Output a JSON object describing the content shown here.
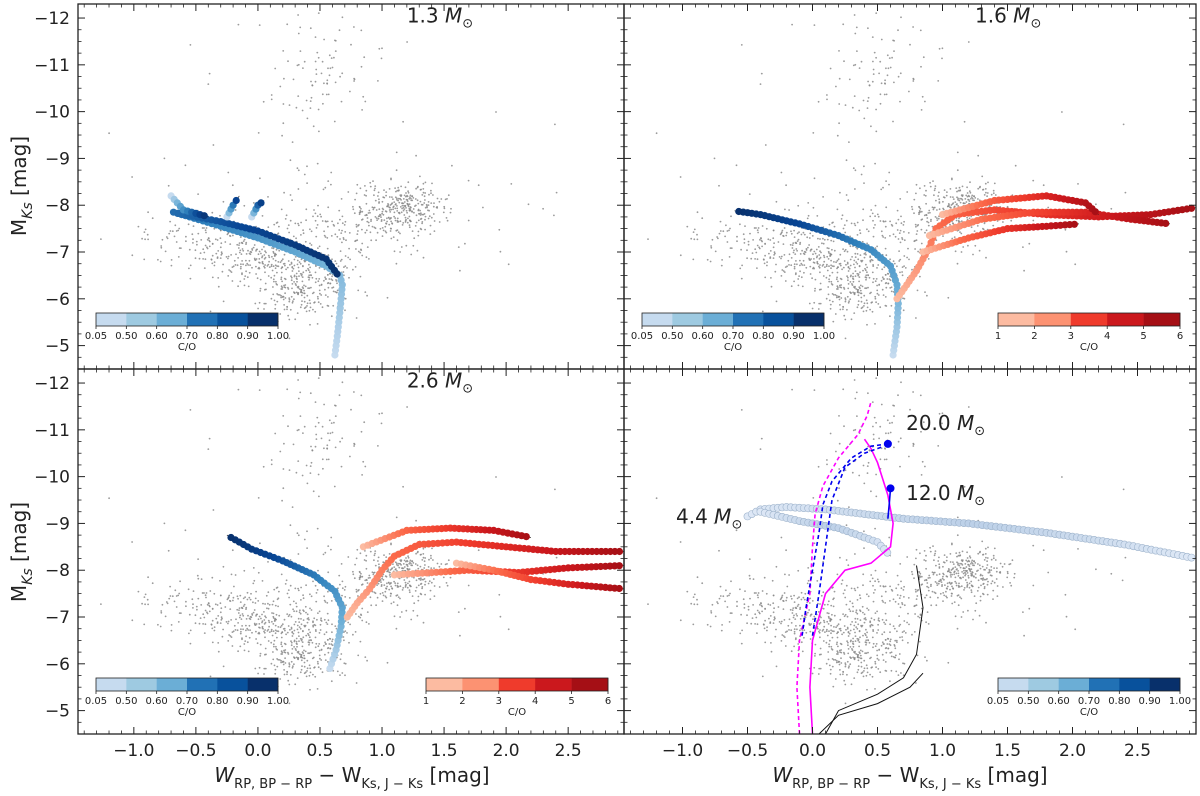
{
  "figure": {
    "xlabel_main": "W",
    "xlabel_sub1": "RP, BP − RP",
    "xlabel_mid": " − W",
    "xlabel_sub2": "Ks, J − Ks",
    "xlabel_unit": "  [mag]",
    "ylabel_main": "M",
    "ylabel_sub": "Ks",
    "ylabel_unit": " [mag]"
  },
  "chart_data": [
    {
      "type": "scatter",
      "panel": "top-left",
      "xlim": [
        -1.45,
        2.95
      ],
      "ylim": [
        -12.3,
        -4.5
      ],
      "y_inverted": true,
      "xticks": [
        -1.0,
        -0.5,
        0.0,
        0.5,
        1.0,
        1.5,
        2.0,
        2.5
      ],
      "yticks": [
        -12,
        -11,
        -10,
        -9,
        -8,
        -7,
        -6,
        -5
      ],
      "annotations": [
        {
          "text": "1.3",
          "x": 1.2,
          "y": -11.9
        }
      ],
      "colorbars": [
        {
          "cmap": "Blues",
          "ticks": [
            "0.05",
            "0.50",
            "0.60",
            "0.70",
            "0.80",
            "0.90",
            "1.00"
          ],
          "label": "C/O",
          "placement": "bottom-left"
        }
      ],
      "series": [
        {
          "kind": "track",
          "colormap": "blues",
          "points": [
            [
              0.62,
              -4.8
            ],
            [
              0.64,
              -5.2
            ],
            [
              0.66,
              -5.7
            ],
            [
              0.68,
              -6.3
            ],
            [
              0.66,
              -6.5
            ],
            [
              0.55,
              -6.7
            ],
            [
              0.3,
              -7.0
            ],
            [
              0.0,
              -7.3
            ],
            [
              -0.3,
              -7.55
            ],
            [
              -0.55,
              -7.75
            ],
            [
              -0.68,
              -7.85
            ],
            [
              -0.6,
              -7.8
            ],
            [
              -0.3,
              -7.65
            ],
            [
              0.0,
              -7.45
            ],
            [
              0.3,
              -7.15
            ],
            [
              0.55,
              -6.85
            ],
            [
              0.66,
              -6.45
            ]
          ]
        },
        {
          "kind": "track",
          "colormap": "blues",
          "points": [
            [
              -0.7,
              -8.2
            ],
            [
              -0.6,
              -7.9
            ],
            [
              -0.4,
              -7.75
            ]
          ]
        },
        {
          "kind": "track",
          "colormap": "blues",
          "points": [
            [
              -0.25,
              -7.75
            ],
            [
              -0.2,
              -8.0
            ],
            [
              -0.15,
              -8.2
            ]
          ]
        },
        {
          "kind": "track",
          "colormap": "blues",
          "points": [
            [
              -0.05,
              -7.75
            ],
            [
              0.0,
              -8.0
            ],
            [
              0.05,
              -8.1
            ]
          ]
        }
      ]
    },
    {
      "type": "scatter",
      "panel": "top-right",
      "xlim": [
        -1.45,
        2.95
      ],
      "ylim": [
        -12.3,
        -4.5
      ],
      "y_inverted": true,
      "xticks": [
        -1.0,
        -0.5,
        0.0,
        0.5,
        1.0,
        1.5,
        2.0,
        2.5
      ],
      "yticks": [
        -12,
        -11,
        -10,
        -9,
        -8,
        -7,
        -6,
        -5
      ],
      "annotations": [
        {
          "text": "1.6",
          "x": 1.25,
          "y": -11.9
        }
      ],
      "colorbars": [
        {
          "cmap": "Blues",
          "ticks": [
            "0.05",
            "0.50",
            "0.60",
            "0.70",
            "0.80",
            "0.90",
            "1.00"
          ],
          "label": "C/O",
          "placement": "bottom-left"
        },
        {
          "cmap": "Reds",
          "ticks": [
            "1",
            "2",
            "3",
            "4",
            "5",
            "6"
          ],
          "label": "C/O",
          "placement": "bottom-right"
        }
      ],
      "series": [
        {
          "kind": "track",
          "colormap": "blues",
          "points": [
            [
              0.62,
              -4.8
            ],
            [
              0.65,
              -5.4
            ],
            [
              0.66,
              -5.9
            ],
            [
              0.65,
              -6.3
            ],
            [
              0.6,
              -6.7
            ],
            [
              0.45,
              -7.05
            ],
            [
              0.2,
              -7.35
            ],
            [
              -0.1,
              -7.6
            ],
            [
              -0.4,
              -7.8
            ],
            [
              -0.6,
              -7.88
            ]
          ]
        },
        {
          "kind": "track",
          "colormap": "reds",
          "points": [
            [
              0.65,
              -6.0
            ],
            [
              0.8,
              -6.6
            ],
            [
              0.9,
              -7.1
            ],
            [
              0.95,
              -7.5
            ],
            [
              1.1,
              -7.8
            ],
            [
              1.4,
              -7.9
            ],
            [
              1.8,
              -7.8
            ],
            [
              2.2,
              -7.75
            ],
            [
              2.6,
              -7.8
            ],
            [
              2.95,
              -7.95
            ]
          ]
        },
        {
          "kind": "track",
          "colormap": "reds",
          "points": [
            [
              0.85,
              -7.0
            ],
            [
              1.2,
              -7.3
            ],
            [
              1.5,
              -7.5
            ],
            [
              1.8,
              -7.55
            ],
            [
              2.05,
              -7.6
            ]
          ]
        },
        {
          "kind": "track",
          "colormap": "reds",
          "points": [
            [
              0.9,
              -7.35
            ],
            [
              1.3,
              -7.7
            ],
            [
              1.7,
              -7.85
            ],
            [
              2.1,
              -7.85
            ],
            [
              2.45,
              -7.7
            ],
            [
              2.75,
              -7.6
            ]
          ]
        },
        {
          "kind": "track",
          "colormap": "reds",
          "points": [
            [
              1.0,
              -7.8
            ],
            [
              1.4,
              -8.1
            ],
            [
              1.8,
              -8.2
            ],
            [
              2.1,
              -8.05
            ],
            [
              2.2,
              -7.8
            ]
          ]
        }
      ]
    },
    {
      "type": "scatter",
      "panel": "bottom-left",
      "xlim": [
        -1.45,
        2.95
      ],
      "ylim": [
        -12.3,
        -4.5
      ],
      "y_inverted": true,
      "xticks": [
        -1.0,
        -0.5,
        0.0,
        0.5,
        1.0,
        1.5,
        2.0,
        2.5
      ],
      "yticks": [
        -12,
        -11,
        -10,
        -9,
        -8,
        -7,
        -6,
        -5
      ],
      "annotations": [
        {
          "text": "2.6",
          "x": 1.2,
          "y": -11.9
        }
      ],
      "colorbars": [
        {
          "cmap": "Blues",
          "ticks": [
            "0.05",
            "0.50",
            "0.60",
            "0.70",
            "0.80",
            "0.90",
            "1.00"
          ],
          "label": "C/O",
          "placement": "bottom-left"
        },
        {
          "cmap": "Reds",
          "ticks": [
            "1",
            "2",
            "3",
            "4",
            "5",
            "6"
          ],
          "label": "C/O",
          "placement": "bottom-right"
        }
      ],
      "series": [
        {
          "kind": "track",
          "colormap": "blues",
          "points": [
            [
              0.58,
              -5.9
            ],
            [
              0.63,
              -6.3
            ],
            [
              0.67,
              -6.8
            ],
            [
              0.68,
              -7.2
            ],
            [
              0.62,
              -7.55
            ],
            [
              0.45,
              -7.9
            ],
            [
              0.2,
              -8.2
            ],
            [
              -0.05,
              -8.45
            ],
            [
              -0.25,
              -8.75
            ]
          ]
        },
        {
          "kind": "track",
          "colormap": "reds",
          "points": [
            [
              0.72,
              -7.0
            ],
            [
              0.8,
              -7.3
            ],
            [
              0.9,
              -7.6
            ],
            [
              1.0,
              -8.0
            ],
            [
              1.1,
              -8.3
            ],
            [
              1.3,
              -8.55
            ],
            [
              1.6,
              -8.6
            ],
            [
              2.0,
              -8.5
            ],
            [
              2.4,
              -8.4
            ],
            [
              2.95,
              -8.4
            ]
          ]
        },
        {
          "kind": "track",
          "colormap": "reds",
          "points": [
            [
              0.85,
              -8.5
            ],
            [
              1.2,
              -8.85
            ],
            [
              1.55,
              -8.9
            ],
            [
              1.9,
              -8.85
            ],
            [
              2.2,
              -8.7
            ]
          ]
        },
        {
          "kind": "track",
          "colormap": "reds",
          "points": [
            [
              1.1,
              -7.9
            ],
            [
              1.4,
              -7.95
            ],
            [
              1.7,
              -8.0
            ],
            [
              2.1,
              -7.95
            ],
            [
              2.5,
              -8.05
            ],
            [
              2.95,
              -8.1
            ]
          ]
        },
        {
          "kind": "track",
          "colormap": "reds",
          "points": [
            [
              1.6,
              -8.15
            ],
            [
              1.9,
              -8.0
            ],
            [
              2.2,
              -7.8
            ],
            [
              2.5,
              -7.7
            ],
            [
              2.95,
              -7.6
            ]
          ]
        }
      ]
    },
    {
      "type": "scatter",
      "panel": "bottom-right",
      "xlim": [
        -1.45,
        2.95
      ],
      "ylim": [
        -12.3,
        -4.5
      ],
      "y_inverted": true,
      "xticks": [
        -1.0,
        -0.5,
        0.0,
        0.5,
        1.0,
        1.5,
        2.0,
        2.5
      ],
      "yticks": [
        -12,
        -11,
        -10,
        -9,
        -8,
        -7,
        -6,
        -5
      ],
      "annotations": [
        {
          "text": "20.0",
          "x": 0.72,
          "y": -11.0
        },
        {
          "text": "12.0",
          "x": 0.72,
          "y": -9.5
        },
        {
          "text": "4.4",
          "x": -1.05,
          "y": -9.0
        }
      ],
      "colorbars": [
        {
          "cmap": "Blues",
          "ticks": [
            "0.05",
            "0.50",
            "0.60",
            "0.70",
            "0.80",
            "0.90",
            "1.00"
          ],
          "label": "C/O",
          "placement": "bottom-right"
        }
      ],
      "series": [
        {
          "kind": "track",
          "colormap": "pale",
          "points": [
            [
              -0.5,
              -9.15
            ],
            [
              -0.4,
              -9.3
            ],
            [
              -0.2,
              -9.35
            ],
            [
              0.1,
              -9.3
            ],
            [
              0.4,
              -9.2
            ],
            [
              0.7,
              -9.1
            ],
            [
              1.2,
              -9.0
            ],
            [
              1.8,
              -8.8
            ],
            [
              2.4,
              -8.55
            ],
            [
              2.95,
              -8.25
            ]
          ]
        },
        {
          "kind": "track",
          "colormap": "pale",
          "points": [
            [
              -0.4,
              -9.25
            ],
            [
              -0.1,
              -9.05
            ],
            [
              0.2,
              -8.9
            ],
            [
              0.5,
              -8.6
            ],
            [
              0.6,
              -8.3
            ]
          ]
        },
        {
          "kind": "line",
          "color": "#ff00ff",
          "dashed": false,
          "points": [
            [
              0.0,
              -4.5
            ],
            [
              -0.02,
              -5.5
            ],
            [
              0.0,
              -6.5
            ],
            [
              0.1,
              -7.5
            ],
            [
              0.25,
              -8.0
            ],
            [
              0.45,
              -8.15
            ],
            [
              0.6,
              -8.5
            ],
            [
              0.62,
              -9.0
            ],
            [
              0.58,
              -9.6
            ],
            [
              0.5,
              -10.3
            ],
            [
              0.45,
              -10.6
            ],
            [
              0.4,
              -10.8
            ]
          ]
        },
        {
          "kind": "line",
          "color": "#ff00ff",
          "dashed": true,
          "points": [
            [
              -0.1,
              -4.5
            ],
            [
              -0.12,
              -5.5
            ],
            [
              -0.1,
              -6.5
            ],
            [
              -0.02,
              -7.5
            ],
            [
              0.0,
              -8.5
            ],
            [
              0.02,
              -9.2
            ],
            [
              0.08,
              -9.8
            ],
            [
              0.2,
              -10.4
            ],
            [
              0.35,
              -10.9
            ],
            [
              0.42,
              -11.3
            ],
            [
              0.45,
              -11.6
            ]
          ]
        },
        {
          "kind": "line",
          "color": "#0000ee",
          "dashed": true,
          "points": [
            [
              -0.08,
              -6.6
            ],
            [
              -0.05,
              -7.2
            ],
            [
              0.0,
              -8.0
            ],
            [
              0.05,
              -8.8
            ],
            [
              0.08,
              -9.4
            ],
            [
              0.15,
              -9.9
            ],
            [
              0.3,
              -10.4
            ],
            [
              0.45,
              -10.65
            ],
            [
              0.58,
              -10.7
            ]
          ]
        },
        {
          "kind": "line",
          "color": "#0000ee",
          "dashed": true,
          "points": [
            [
              0.0,
              -6.6
            ],
            [
              0.05,
              -7.5
            ],
            [
              0.1,
              -8.5
            ],
            [
              0.15,
              -9.5
            ],
            [
              0.25,
              -10.2
            ],
            [
              0.4,
              -10.5
            ],
            [
              0.55,
              -10.65
            ]
          ]
        },
        {
          "kind": "line",
          "color": "#0000ee",
          "dashed": false,
          "points": [
            [
              0.58,
              -9.1
            ],
            [
              0.59,
              -9.4
            ],
            [
              0.6,
              -9.75
            ]
          ]
        },
        {
          "kind": "line",
          "color": "#111111",
          "dashed": false,
          "points": [
            [
              0.1,
              -4.5
            ],
            [
              0.2,
              -5.0
            ],
            [
              0.5,
              -5.35
            ],
            [
              0.7,
              -5.7
            ],
            [
              0.8,
              -6.2
            ],
            [
              0.85,
              -7.2
            ],
            [
              0.8,
              -8.1
            ]
          ]
        },
        {
          "kind": "line",
          "color": "#111111",
          "dashed": false,
          "points": [
            [
              0.05,
              -4.5
            ],
            [
              0.2,
              -4.9
            ],
            [
              0.5,
              -5.15
            ],
            [
              0.75,
              -5.5
            ],
            [
              0.85,
              -5.8
            ]
          ]
        }
      ],
      "markers": [
        {
          "x": 0.58,
          "y": -10.7,
          "color": "#0000ee"
        },
        {
          "x": 0.6,
          "y": -9.75,
          "color": "#0000ee"
        }
      ]
    }
  ]
}
